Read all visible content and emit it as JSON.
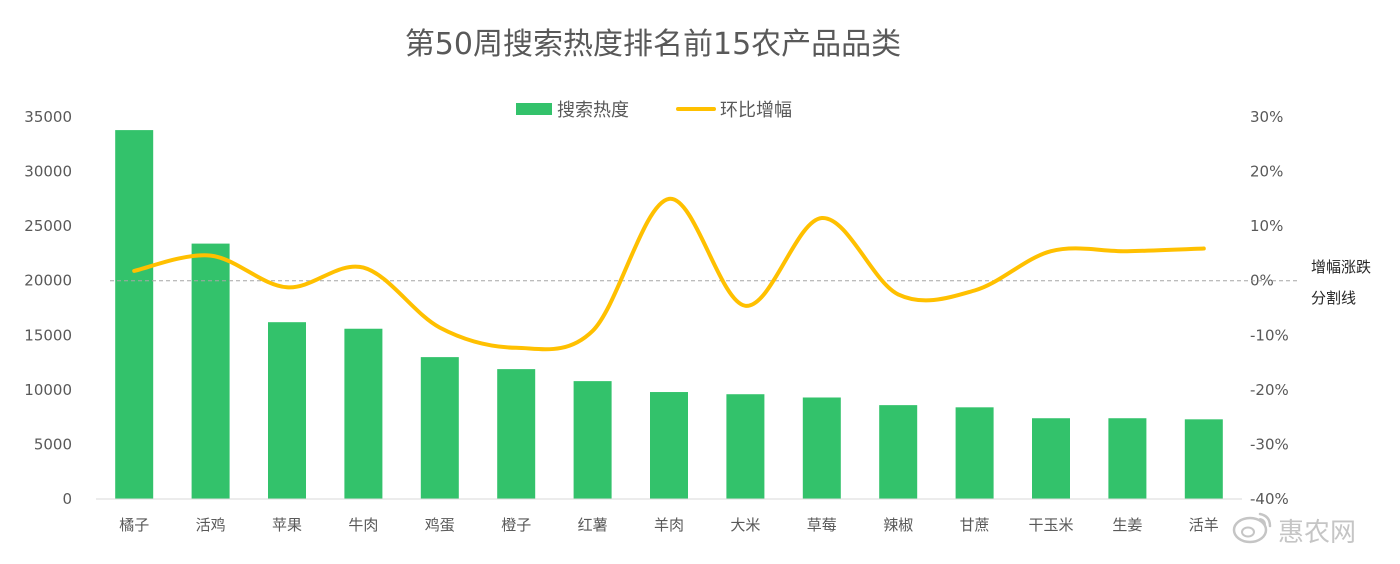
{
  "chart_data": {
    "type": "bar",
    "title": "第50周搜索热度排名前15农产品品类",
    "categories": [
      "橘子",
      "活鸡",
      "苹果",
      "牛肉",
      "鸡蛋",
      "橙子",
      "红薯",
      "羊肉",
      "大米",
      "草莓",
      "辣椒",
      "甘蔗",
      "干玉米",
      "生姜",
      "活羊"
    ],
    "series": [
      {
        "name": "搜索热度",
        "type": "bar",
        "axis": "left",
        "color": "#33c26b",
        "values": [
          33800,
          23400,
          16200,
          15600,
          13000,
          11900,
          10800,
          9800,
          9600,
          9300,
          8600,
          8400,
          7400,
          7400,
          7300
        ]
      },
      {
        "name": "环比增幅",
        "type": "line",
        "axis": "right",
        "color": "#ffc000",
        "values": [
          1.8,
          4.6,
          -1.2,
          2.4,
          -8.6,
          -12.3,
          -9.2,
          15.0,
          -4.6,
          11.5,
          -2.5,
          -1.8,
          5.4,
          5.4,
          5.9
        ]
      }
    ],
    "y_left": {
      "min": 0,
      "max": 35000,
      "ticks": [
        0,
        5000,
        10000,
        15000,
        20000,
        25000,
        30000,
        35000
      ]
    },
    "y_right": {
      "min": -40,
      "max": 30,
      "ticks": [
        "-40%",
        "-30%",
        "-20%",
        "-10%",
        "0%",
        "10%",
        "20%",
        "30%"
      ]
    },
    "reference_line": {
      "value": 0,
      "axis": "right",
      "style": "dashed",
      "label_line1": "增幅涨跌",
      "label_line2": "分割线"
    },
    "legend": {
      "position": "top-center",
      "items": [
        "搜索热度",
        "环比增幅"
      ]
    },
    "grid": false
  },
  "watermark": {
    "text": "惠农网",
    "icon": "weibo-icon"
  }
}
